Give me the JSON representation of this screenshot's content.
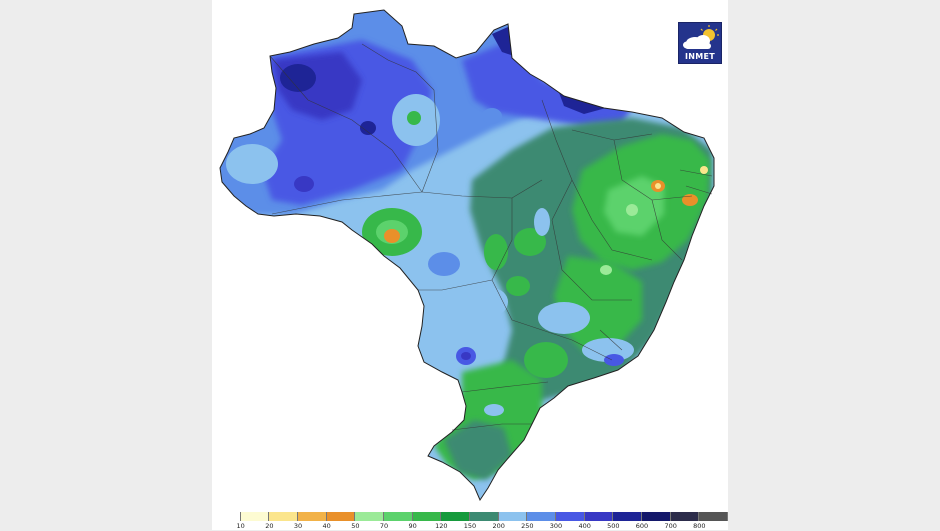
{
  "logo": {
    "text": "INMET",
    "icon": "sun-cloud-icon"
  },
  "legend": {
    "bins": [
      {
        "upper": "10",
        "color": "#fdfbd2"
      },
      {
        "upper": "20",
        "color": "#fbe58c"
      },
      {
        "upper": "30",
        "color": "#f2b248"
      },
      {
        "upper": "40",
        "color": "#e9902a"
      },
      {
        "upper": "50",
        "color": "#9bea98"
      },
      {
        "upper": "70",
        "color": "#5cd26c"
      },
      {
        "upper": "90",
        "color": "#37b84a"
      },
      {
        "upper": "120",
        "color": "#169a3c"
      },
      {
        "upper": "150",
        "color": "#3c8a72"
      },
      {
        "upper": "200",
        "color": "#8cc2ee"
      },
      {
        "upper": "250",
        "color": "#5c8ee8"
      },
      {
        "upper": "300",
        "color": "#4858e4"
      },
      {
        "upper": "400",
        "color": "#3838c4"
      },
      {
        "upper": "500",
        "color": "#1e2496"
      },
      {
        "upper": "600",
        "color": "#14186a"
      },
      {
        "upper": "700",
        "color": "#2c2c4a"
      },
      {
        "upper": "800",
        "color": "#555555"
      }
    ]
  }
}
